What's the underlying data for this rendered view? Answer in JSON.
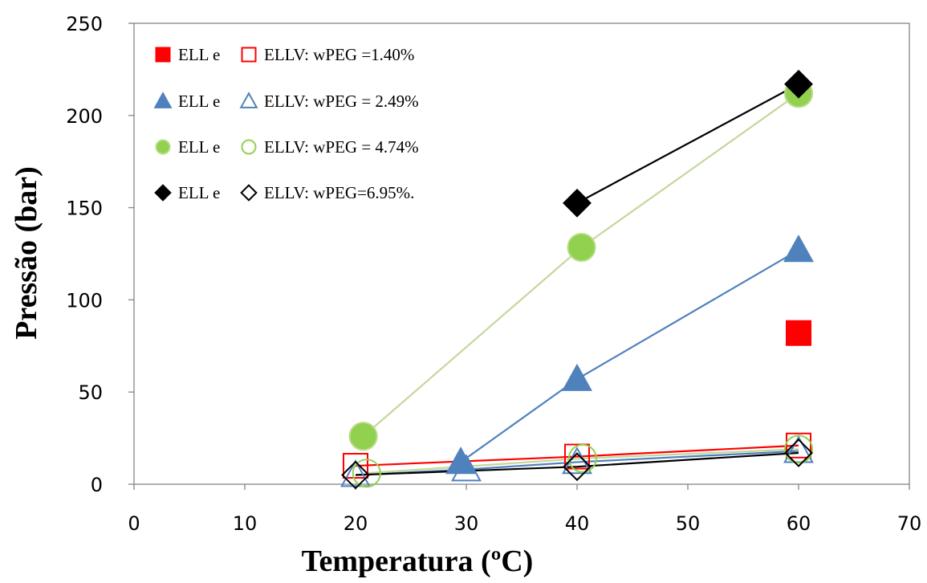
{
  "chart_data": {
    "type": "scatter",
    "xlabel": "Temperatura  (ºC)",
    "ylabel": "Pressão (bar)",
    "xlim": [
      0,
      70
    ],
    "ylim": [
      0,
      250
    ],
    "xticks": [
      "0",
      "10",
      "20",
      "30",
      "40",
      "50",
      "60",
      "70"
    ],
    "yticks": [
      "0",
      "50",
      "100",
      "150",
      "200",
      "250"
    ],
    "grid": false,
    "legend_position": "top-left",
    "series": [
      {
        "group": "wPEG=1.40%",
        "kind": "ELL",
        "marker": "square",
        "filled": true,
        "color": "#ff0000",
        "line": false,
        "points": [
          [
            60,
            82
          ]
        ]
      },
      {
        "group": "wPEG=1.40%",
        "kind": "ELLV",
        "marker": "square",
        "filled": false,
        "color": "#ff0000",
        "line": true,
        "points": [
          [
            20,
            10
          ],
          [
            40,
            15
          ],
          [
            60,
            21
          ]
        ]
      },
      {
        "group": "wPEG=2.49%",
        "kind": "ELL",
        "marker": "triangle",
        "filled": true,
        "color": "#4f81bd",
        "line": true,
        "points": [
          [
            29.5,
            12
          ],
          [
            40,
            57
          ],
          [
            60,
            127
          ]
        ]
      },
      {
        "group": "wPEG=2.49%",
        "kind": "ELLV",
        "marker": "triangle",
        "filled": false,
        "color": "#4f81bd",
        "line": true,
        "points": [
          [
            20,
            5
          ],
          [
            30,
            8
          ],
          [
            40,
            12
          ],
          [
            60,
            18
          ]
        ]
      },
      {
        "group": "wPEG=4.74%",
        "kind": "ELL",
        "marker": "circle",
        "filled": true,
        "color": "#92d050",
        "line": true,
        "points": [
          [
            20.7,
            26
          ],
          [
            40.4,
            128.5
          ],
          [
            60,
            212
          ]
        ]
      },
      {
        "group": "wPEG=4.74%",
        "kind": "ELLV",
        "marker": "circle",
        "filled": false,
        "color": "#92d050",
        "line": true,
        "points": [
          [
            21,
            6
          ],
          [
            40.5,
            14
          ],
          [
            60,
            19
          ]
        ]
      },
      {
        "group": "wPEG=6.95%",
        "kind": "ELL",
        "marker": "diamond",
        "filled": true,
        "color": "#000000",
        "line": true,
        "points": [
          [
            40,
            152.5
          ],
          [
            60,
            217
          ]
        ]
      },
      {
        "group": "wPEG=6.95%",
        "kind": "ELLV",
        "marker": "diamond",
        "filled": false,
        "color": "#000000",
        "line": true,
        "points": [
          [
            20,
            5
          ],
          [
            40,
            9.5
          ],
          [
            60,
            17
          ]
        ]
      }
    ],
    "legend": [
      {
        "marker": "square",
        "color": "#ff0000",
        "text_a": "ELL e",
        "text_b": "ELLV: wPEG =1.40%"
      },
      {
        "marker": "triangle",
        "color": "#4f81bd",
        "text_a": "ELL e",
        "text_b": "ELLV: wPEG = 2.49%"
      },
      {
        "marker": "circle",
        "color": "#92d050",
        "text_a": "ELL e",
        "text_b": "ELLV: wPEG =  4.74%"
      },
      {
        "marker": "diamond",
        "color": "#000000",
        "text_a": "ELL e",
        "text_b": "ELLV: wPEG=6.95%."
      }
    ],
    "ell_line_colors": {
      "wPEG=2.49%": "#4f81bd",
      "wPEG=4.74%": "#c4d79b",
      "wPEG=6.95%": "#000000"
    }
  }
}
